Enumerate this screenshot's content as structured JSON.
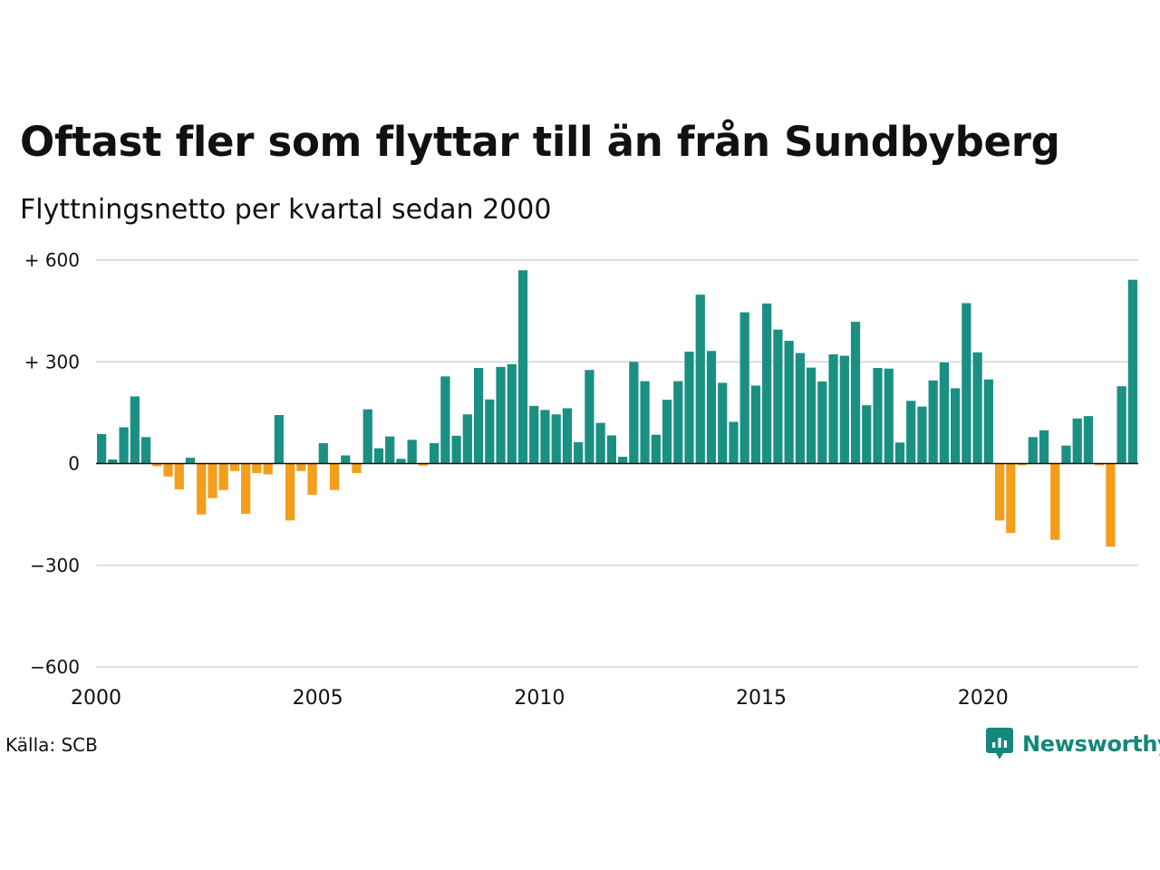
{
  "chart_data": {
    "type": "bar",
    "title": "Oftast fler som flyttar till än från Sundbyberg",
    "subtitle": "Flyttningsnetto per kvartal sedan 2000",
    "xlabel": "",
    "ylabel": "",
    "x_start": 2000,
    "x_end": 2023.5,
    "ylim": [
      -600,
      600
    ],
    "y_ticks": [
      {
        "value": 600,
        "label": "+ 600"
      },
      {
        "value": 300,
        "label": "+ 300"
      },
      {
        "value": 0,
        "label": "0"
      },
      {
        "value": -300,
        "label": "−300"
      },
      {
        "value": -600,
        "label": "−600"
      }
    ],
    "x_ticks": [
      {
        "value": 2000,
        "label": "2000"
      },
      {
        "value": 2005,
        "label": "2005"
      },
      {
        "value": 2010,
        "label": "2010"
      },
      {
        "value": 2015,
        "label": "2015"
      },
      {
        "value": 2020,
        "label": "2020"
      }
    ],
    "grid": true,
    "colors": {
      "positive": "#1a9082",
      "negative": "#f59e1c",
      "grid": "#dddddd",
      "zero": "#111111"
    },
    "categories": [
      "2000Q1",
      "2000Q2",
      "2000Q3",
      "2000Q4",
      "2001Q1",
      "2001Q2",
      "2001Q3",
      "2001Q4",
      "2002Q1",
      "2002Q2",
      "2002Q3",
      "2002Q4",
      "2003Q1",
      "2003Q2",
      "2003Q3",
      "2003Q4",
      "2004Q1",
      "2004Q2",
      "2004Q3",
      "2004Q4",
      "2005Q1",
      "2005Q2",
      "2005Q3",
      "2005Q4",
      "2006Q1",
      "2006Q2",
      "2006Q3",
      "2006Q4",
      "2007Q1",
      "2007Q2",
      "2007Q3",
      "2007Q4",
      "2008Q1",
      "2008Q2",
      "2008Q3",
      "2008Q4",
      "2009Q1",
      "2009Q2",
      "2009Q3",
      "2009Q4",
      "2010Q1",
      "2010Q2",
      "2010Q3",
      "2010Q4",
      "2011Q1",
      "2011Q2",
      "2011Q3",
      "2011Q4",
      "2012Q1",
      "2012Q2",
      "2012Q3",
      "2012Q4",
      "2013Q1",
      "2013Q2",
      "2013Q3",
      "2013Q4",
      "2014Q1",
      "2014Q2",
      "2014Q3",
      "2014Q4",
      "2015Q1",
      "2015Q2",
      "2015Q3",
      "2015Q4",
      "2016Q1",
      "2016Q2",
      "2016Q3",
      "2016Q4",
      "2017Q1",
      "2017Q2",
      "2017Q3",
      "2017Q4",
      "2018Q1",
      "2018Q2",
      "2018Q3",
      "2018Q4",
      "2019Q1",
      "2019Q2",
      "2019Q3",
      "2019Q4",
      "2020Q1",
      "2020Q2",
      "2020Q3",
      "2020Q4",
      "2021Q1",
      "2021Q2",
      "2021Q3",
      "2021Q4",
      "2022Q1",
      "2022Q2",
      "2022Q3",
      "2022Q4",
      "2023Q1",
      "2023Q2"
    ],
    "values": [
      87,
      12,
      107,
      198,
      78,
      -8,
      -38,
      -76,
      17,
      -150,
      -102,
      -78,
      -22,
      -148,
      -28,
      -32,
      143,
      -168,
      -22,
      -92,
      60,
      -78,
      24,
      -28,
      160,
      45,
      80,
      14,
      70,
      -6,
      60,
      257,
      82,
      145,
      282,
      189,
      285,
      293,
      570,
      170,
      158,
      145,
      163,
      63,
      276,
      120,
      83,
      20,
      300,
      243,
      85,
      188,
      243,
      330,
      498,
      332,
      238,
      123,
      446,
      230,
      472,
      395,
      362,
      326,
      283,
      242,
      322,
      318,
      418,
      172,
      282,
      280,
      62,
      185,
      168,
      245,
      298,
      222,
      473,
      328,
      248,
      -168,
      -205,
      -5,
      78,
      98,
      -225,
      53,
      133,
      140,
      -5,
      -245,
      228,
      542
    ]
  },
  "source_label": "Källa: SCB",
  "brand": {
    "name": "Newsworthy",
    "icon": "newsworthy-logo-icon",
    "color": "#14877a"
  }
}
